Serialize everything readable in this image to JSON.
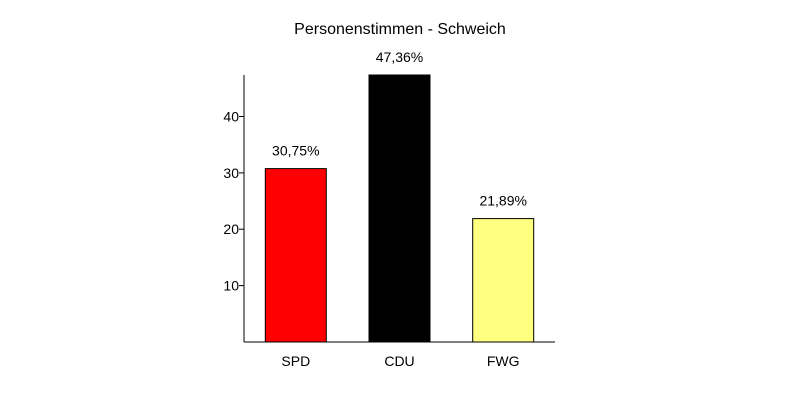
{
  "chart_data": {
    "type": "bar",
    "title": "Personenstimmen - Schweich",
    "categories": [
      "SPD",
      "CDU",
      "FWG"
    ],
    "values": [
      30.75,
      47.36,
      21.89
    ],
    "data_labels": [
      "30,75%",
      "47,36%",
      "21,89%"
    ],
    "bar_colors": [
      "#ff0000",
      "#000000",
      "#ffff80"
    ],
    "bar_outline_color": "#000000",
    "yticks": [
      10,
      20,
      30,
      40
    ],
    "ylim": [
      0,
      47.36
    ],
    "xlabel": "",
    "ylabel": "",
    "grid": false,
    "legend": "none"
  }
}
